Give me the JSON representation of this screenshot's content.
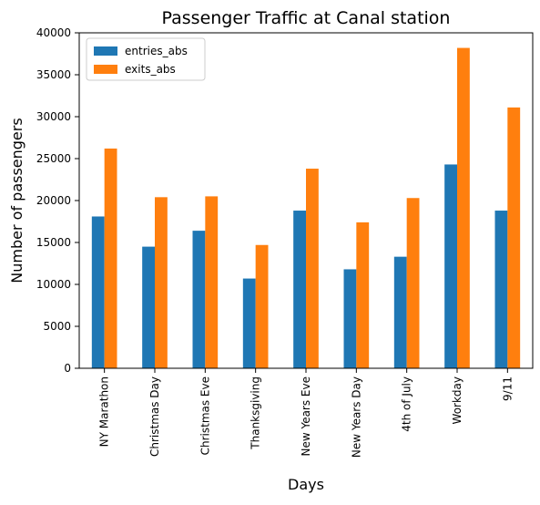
{
  "chart_data": {
    "type": "bar",
    "title": "Passenger Traffic at Canal station",
    "xlabel": "Days",
    "ylabel": "Number of passengers",
    "categories": [
      "NY Marathon",
      "Christmas Day",
      "Christmas Eve",
      "Thanksgiving",
      "New Years Eve",
      "New Years Day",
      "4th of July",
      "Workday",
      "9/11"
    ],
    "series": [
      {
        "name": "entries_abs",
        "color": "#1f77b4",
        "values": [
          18100,
          14500,
          16400,
          10700,
          18800,
          11800,
          13300,
          24300,
          18800
        ]
      },
      {
        "name": "exits_abs",
        "color": "#ff7f0e",
        "values": [
          26200,
          20400,
          20500,
          14700,
          23800,
          17400,
          20300,
          38200,
          31100
        ]
      }
    ],
    "ylim": [
      0,
      40000
    ],
    "yticks": [
      0,
      5000,
      10000,
      15000,
      20000,
      25000,
      30000,
      35000,
      40000
    ],
    "grid": false,
    "legend_position": "top-left"
  }
}
